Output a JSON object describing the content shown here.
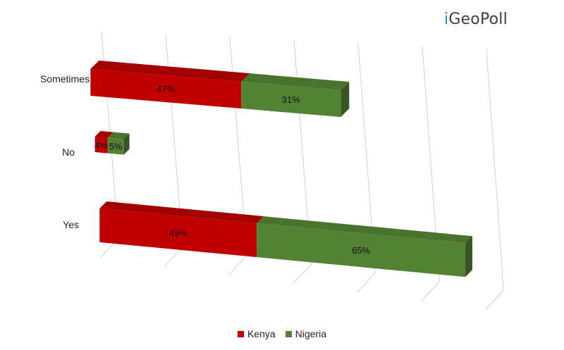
{
  "brand": {
    "prefix": "i",
    "name": "GeoPoll",
    "color": "#1f8fc4"
  },
  "chart_data": {
    "type": "bar",
    "orientation": "horizontal",
    "stacked": true,
    "three_d": true,
    "categories": [
      "Sometimes",
      "No",
      "Yes"
    ],
    "series": [
      {
        "name": "Kenya",
        "values": [
          47,
          4,
          49
        ],
        "labels": [
          "47%",
          "4%",
          "49%"
        ],
        "color": "#c00000",
        "top_color": "#a30000",
        "side_color": "#7a0000"
      },
      {
        "name": "Nigeria",
        "values": [
          31,
          5,
          65
        ],
        "labels": [
          "31%",
          "5%",
          "65%"
        ],
        "color": "#548235",
        "top_color": "#4a742e",
        "side_color": "#375623"
      }
    ],
    "xlim": [
      0,
      120
    ],
    "grid": true,
    "legend": "bottom"
  }
}
